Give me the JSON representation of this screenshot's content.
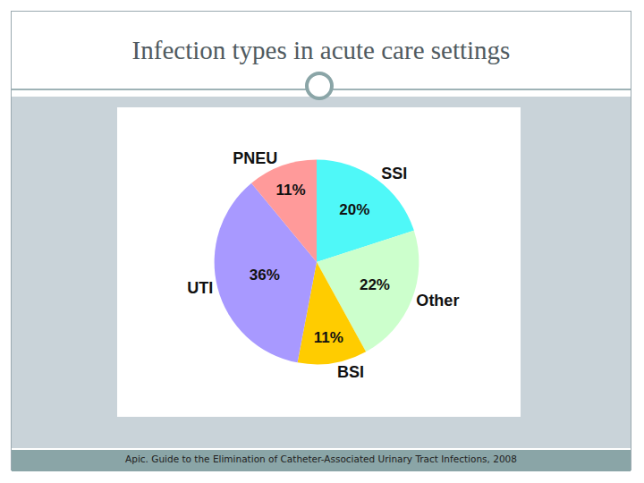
{
  "chart_data": {
    "type": "pie",
    "title": "Infection types in acute care settings",
    "source": "Apic. Guide to the Elimination of Catheter-Associated Urinary Tract Infections, 2008",
    "categories": [
      "SSI",
      "Other",
      "BSI",
      "UTI",
      "PNEU"
    ],
    "values": [
      20,
      22,
      11,
      36,
      11
    ],
    "value_labels": [
      "20%",
      "22%",
      "11%",
      "36%",
      "11%"
    ],
    "colors": [
      "#4ff8f8",
      "#ccffcc",
      "#ffcc00",
      "#a899ff",
      "#ff9a9a"
    ],
    "data_labels": true
  }
}
